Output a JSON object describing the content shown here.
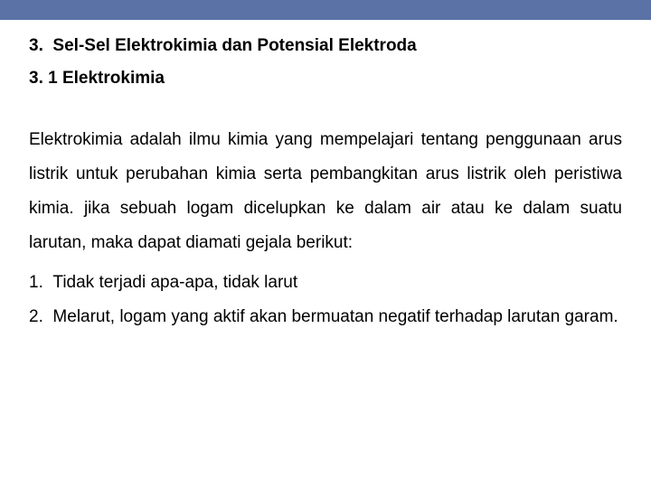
{
  "topBar": {
    "color": "#5a72a5"
  },
  "heading": {
    "number": "3.",
    "title": "Sel-Sel Elektrokimia dan Potensial Elektroda"
  },
  "subheading": "3. 1 Elektrokimia",
  "paragraph": "Elektrokimia adalah ilmu kimia yang mempelajari tentang penggunaan arus listrik untuk perubahan kimia serta pembangkitan arus listrik oleh peristiwa kimia. jika sebuah logam dicelupkan ke dalam air atau ke dalam suatu larutan, maka dapat diamati gejala berikut:",
  "list": [
    {
      "num": "1.",
      "text": "Tidak terjadi apa-apa, tidak larut"
    },
    {
      "num": "2.",
      "text": "Melarut, logam yang aktif akan bermuatan negatif terhadap larutan garam."
    }
  ]
}
